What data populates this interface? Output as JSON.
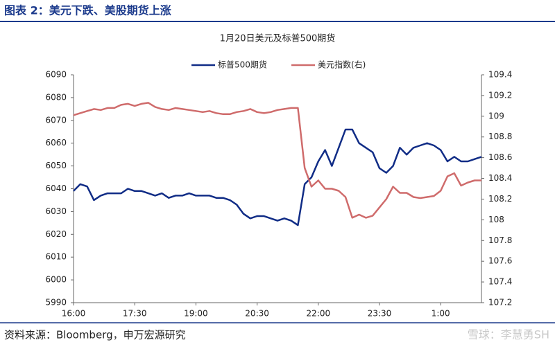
{
  "header": "图表 2：美元下跌、美股期货上涨",
  "source": "资料来源：Bloomberg，申万宏源研究",
  "watermark": "雪球：李慧勇SH",
  "chart_data": {
    "type": "line",
    "title": "1月20日美元及标普500期货",
    "x": [
      "16:00",
      "16:10",
      "16:20",
      "16:30",
      "16:40",
      "16:50",
      "17:00",
      "17:10",
      "17:20",
      "17:30",
      "17:40",
      "17:50",
      "18:00",
      "18:10",
      "18:20",
      "18:30",
      "18:40",
      "18:50",
      "19:00",
      "19:10",
      "19:20",
      "19:30",
      "19:40",
      "19:50",
      "20:00",
      "20:10",
      "20:20",
      "20:30",
      "20:40",
      "20:50",
      "21:00",
      "21:10",
      "21:20",
      "21:30",
      "21:40",
      "21:50",
      "22:00",
      "22:10",
      "22:20",
      "22:30",
      "22:40",
      "22:50",
      "23:00",
      "23:10",
      "23:20",
      "23:30",
      "23:40",
      "23:50",
      "0:00",
      "0:10",
      "0:20",
      "0:30",
      "0:40",
      "0:50",
      "1:00",
      "1:10",
      "1:20",
      "1:30",
      "1:40",
      "1:50",
      "2:00"
    ],
    "xticks": [
      "16:00",
      "17:30",
      "19:00",
      "20:30",
      "22:00",
      "23:30",
      "1:00"
    ],
    "ylim": [
      5990,
      6090
    ],
    "yticks": [
      5990,
      6000,
      6010,
      6020,
      6030,
      6040,
      6050,
      6060,
      6070,
      6080,
      6090
    ],
    "y2lim": [
      107.2,
      109.4
    ],
    "y2ticks": [
      107.2,
      107.4,
      107.6,
      107.8,
      108,
      108.2,
      108.4,
      108.6,
      108.8,
      109,
      109.2,
      109.4
    ],
    "legend": "top",
    "series": [
      {
        "name": "标普500期货",
        "color": "#102c86",
        "values": [
          6039,
          6042,
          6041,
          6035,
          6037,
          6038,
          6038,
          6038,
          6040,
          6039,
          6039,
          6038,
          6037,
          6038,
          6036,
          6037,
          6037,
          6038,
          6037,
          6037,
          6037,
          6036,
          6036,
          6035,
          6033,
          6029,
          6027,
          6028,
          6028,
          6027,
          6026,
          6027,
          6026,
          6024,
          6042,
          6045,
          6052,
          6057,
          6050,
          6058,
          6066,
          6066,
          6060,
          6058,
          6056,
          6049,
          6047,
          6050,
          6058,
          6055,
          6058,
          6059,
          6060,
          6059,
          6057,
          6052,
          6054,
          6052,
          6052,
          6053,
          6054
        ]
      },
      {
        "name": "美元指数(右)",
        "color": "#cf6b6b",
        "axis": "y2",
        "values": [
          109.01,
          109.03,
          109.05,
          109.07,
          109.06,
          109.08,
          109.08,
          109.11,
          109.12,
          109.1,
          109.12,
          109.13,
          109.09,
          109.07,
          109.06,
          109.08,
          109.07,
          109.06,
          109.05,
          109.04,
          109.05,
          109.03,
          109.02,
          109.02,
          109.04,
          109.05,
          109.07,
          109.04,
          109.03,
          109.04,
          109.06,
          109.07,
          109.08,
          109.08,
          108.5,
          108.32,
          108.38,
          108.3,
          108.3,
          108.28,
          108.22,
          108.02,
          108.05,
          108.02,
          108.04,
          108.12,
          108.2,
          108.32,
          108.26,
          108.26,
          108.22,
          108.21,
          108.22,
          108.23,
          108.28,
          108.42,
          108.45,
          108.33,
          108.36,
          108.38,
          108.38
        ]
      }
    ]
  }
}
